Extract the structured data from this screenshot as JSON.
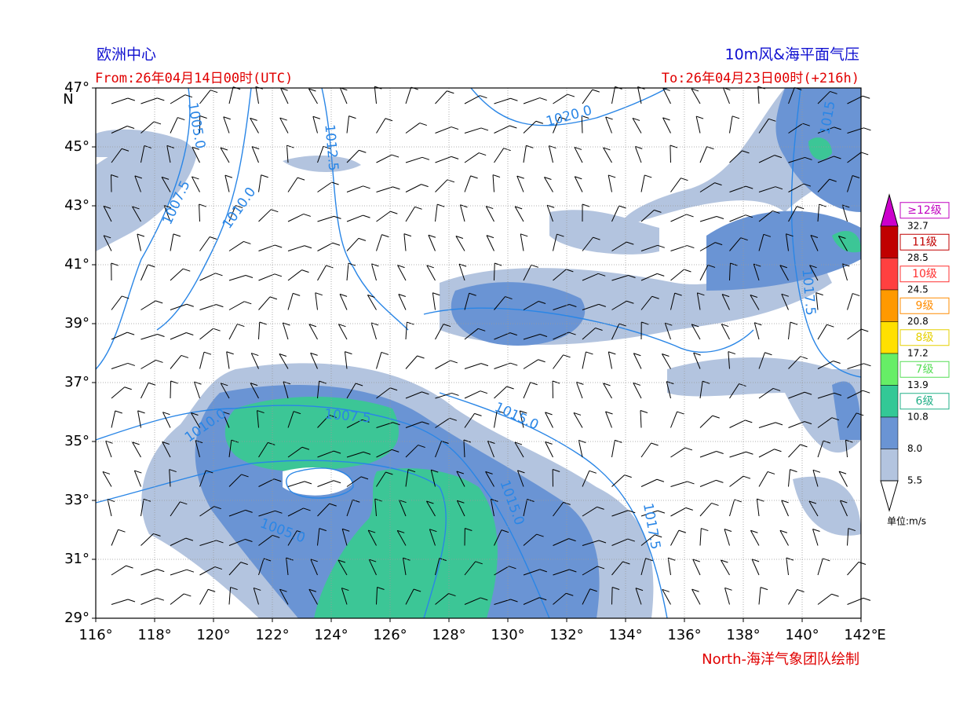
{
  "header": {
    "model": "欧洲中心",
    "product": "10m风&海平面气压",
    "from": "From:26年04月14日00时(UTC)",
    "to": "To:26年04月23日00时(+216h)"
  },
  "map": {
    "lat_labels": [
      "47°",
      "45°",
      "43°",
      "41°",
      "39°",
      "37°",
      "35°",
      "33°",
      "31°",
      "29°"
    ],
    "lat_unit": "N",
    "lon_labels": [
      "116°",
      "118°",
      "120°",
      "122°",
      "124°",
      "126°",
      "128°",
      "130°",
      "132°",
      "134°",
      "136°",
      "138°",
      "140°",
      "142°"
    ],
    "lon_unit": "E",
    "isobar_labels": [
      "1005.0",
      "1012.5",
      "1020.0",
      "1015",
      "1007.5",
      "1010.0",
      "1017.5",
      "1007.5",
      "1015.0",
      "1010.0",
      "1005.0",
      "1015.0",
      "1017.5"
    ]
  },
  "colorbar": {
    "levels": [
      "32.7",
      "28.5",
      "24.5",
      "20.8",
      "17.2",
      "13.9",
      "10.8",
      "8.0",
      "5.5"
    ],
    "classes": [
      "≥12级",
      "11级",
      "10级",
      "9级",
      "8级",
      "7级",
      "6级"
    ],
    "unit": "单位:m/s"
  },
  "footer": {
    "credit": "North-海洋气象团队绘制"
  }
}
